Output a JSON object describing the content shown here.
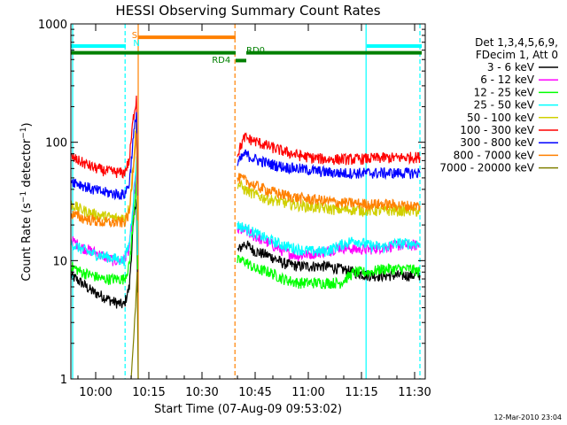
{
  "chart_data": {
    "type": "line",
    "title": "HESSI Observing Summary Count Rates",
    "xlabel": "Start Time (07-Aug-09 09:53:02)",
    "ylabel_main": "Count Rate (s",
    "ylabel_sup1": "−1",
    "ylabel_mid": " detector",
    "ylabel_sup2": "−1",
    "ylabel_end": ")",
    "x_unit": "minutes after 09:53",
    "xlim": [
      0,
      100
    ],
    "ylim": [
      1,
      1000
    ],
    "y_scale": "log",
    "x_ticks": [
      {
        "x": 7,
        "label": "10:00"
      },
      {
        "x": 22,
        "label": "10:15"
      },
      {
        "x": 37,
        "label": "10:30"
      },
      {
        "x": 52,
        "label": "10:45"
      },
      {
        "x": 67,
        "label": "11:00"
      },
      {
        "x": 82,
        "label": "11:15"
      },
      {
        "x": 97,
        "label": "11:30"
      }
    ],
    "y_ticks": [
      {
        "y": 1,
        "label": "1"
      },
      {
        "y": 10,
        "label": "10"
      },
      {
        "y": 100,
        "label": "100"
      },
      {
        "y": 1000,
        "label": "1000"
      }
    ],
    "legend_position": "right",
    "legend_header": [
      "Det 1,3,4,5,6,9,",
      "FDecim 1, Att 0"
    ],
    "flags": {
      "S_label": "S",
      "N_label": "N",
      "RD0_label": "RD0",
      "RD4_label": "RD4",
      "S_color": "#ff8000",
      "N_color": "#00ffff",
      "RD_color": "#008000"
    },
    "flag_bars": [
      {
        "name": "saa-flag",
        "segments": [
          [
            0,
            15.5
          ],
          [
            83.5,
            99
          ]
        ],
        "y": 650,
        "color": "#00ffff"
      },
      {
        "name": "S-flag",
        "segments": [
          [
            19,
            46.5
          ]
        ],
        "y": 770,
        "color": "#ff8000"
      },
      {
        "name": "RD0-flag",
        "segments": [
          [
            0,
            46.5
          ],
          [
            49.5,
            99
          ]
        ],
        "y": 570,
        "color": "#008000"
      },
      {
        "name": "RD4-flag",
        "segments": [
          [
            46.5,
            49.5
          ]
        ],
        "y": 490,
        "color": "#008000"
      }
    ],
    "vlines": [
      {
        "x": 0.5,
        "color": "#00ffff",
        "dashed": false
      },
      {
        "x": 15.3,
        "color": "#00ffff",
        "dashed": true
      },
      {
        "x": 19,
        "color": "#ff8000",
        "dashed": false
      },
      {
        "x": 46.3,
        "color": "#ff8000",
        "dashed": true
      },
      {
        "x": 83.3,
        "color": "#00ffff",
        "dashed": false
      },
      {
        "x": 98.5,
        "color": "#00ffff",
        "dashed": true
      }
    ],
    "series": [
      {
        "name": "3 - 6 keV",
        "color": "#000000",
        "points": [
          [
            0,
            7.5
          ],
          [
            3,
            6.5
          ],
          [
            6,
            5.5
          ],
          [
            9,
            5
          ],
          [
            12,
            4.5
          ],
          [
            15,
            4.2
          ],
          [
            16.5,
            6
          ],
          [
            17.5,
            18
          ],
          [
            18.5,
            35
          ],
          [
            19,
            2
          ],
          [
            47,
            12
          ],
          [
            49,
            14
          ],
          [
            52,
            12
          ],
          [
            56,
            11
          ],
          [
            60,
            9.5
          ],
          [
            64,
            9
          ],
          [
            68,
            9
          ],
          [
            72,
            9
          ],
          [
            76,
            8.5
          ],
          [
            80,
            8
          ],
          [
            84,
            7.5
          ],
          [
            88,
            7.5
          ],
          [
            92,
            7.5
          ],
          [
            96,
            7.5
          ],
          [
            98.5,
            7.5
          ]
        ]
      },
      {
        "name": "6 - 12 keV",
        "color": "#ff00ff",
        "points": [
          [
            0,
            15
          ],
          [
            3,
            13
          ],
          [
            6,
            12
          ],
          [
            9,
            11
          ],
          [
            12,
            10
          ],
          [
            15,
            10
          ],
          [
            16.5,
            13
          ],
          [
            17.5,
            25
          ],
          [
            18.5,
            60
          ],
          [
            19,
            5
          ],
          [
            47,
            18
          ],
          [
            49,
            18
          ],
          [
            52,
            16
          ],
          [
            56,
            14
          ],
          [
            60,
            12
          ],
          [
            64,
            11
          ],
          [
            68,
            11.5
          ],
          [
            72,
            12
          ],
          [
            76,
            13
          ],
          [
            80,
            12.5
          ],
          [
            84,
            12.5
          ],
          [
            88,
            13
          ],
          [
            92,
            13.5
          ],
          [
            96,
            13.5
          ],
          [
            98.5,
            13.5
          ]
        ]
      },
      {
        "name": "12 - 25 keV",
        "color": "#00ff00",
        "points": [
          [
            0,
            9
          ],
          [
            3,
            8
          ],
          [
            6,
            7.5
          ],
          [
            9,
            7
          ],
          [
            12,
            7
          ],
          [
            15,
            7
          ],
          [
            16.5,
            9
          ],
          [
            17.5,
            20
          ],
          [
            18.5,
            50
          ],
          [
            19,
            3
          ],
          [
            47,
            10
          ],
          [
            49,
            10
          ],
          [
            52,
            8.5
          ],
          [
            56,
            8
          ],
          [
            60,
            7
          ],
          [
            64,
            6.5
          ],
          [
            68,
            6.5
          ],
          [
            72,
            6.5
          ],
          [
            76,
            6.5
          ],
          [
            80,
            8
          ],
          [
            84,
            8
          ],
          [
            88,
            8.5
          ],
          [
            92,
            8.5
          ],
          [
            96,
            8.5
          ],
          [
            98.5,
            8
          ]
        ]
      },
      {
        "name": "25 - 50 keV",
        "color": "#00ffff",
        "points": [
          [
            0,
            14
          ],
          [
            3,
            12.5
          ],
          [
            6,
            11.5
          ],
          [
            9,
            11
          ],
          [
            12,
            10.5
          ],
          [
            15,
            10
          ],
          [
            16.5,
            14
          ],
          [
            17.5,
            30
          ],
          [
            18.5,
            70
          ],
          [
            19,
            5
          ],
          [
            47,
            20
          ],
          [
            49,
            19
          ],
          [
            52,
            17
          ],
          [
            56,
            15
          ],
          [
            60,
            13.5
          ],
          [
            64,
            12.5
          ],
          [
            68,
            12
          ],
          [
            72,
            12
          ],
          [
            76,
            13.5
          ],
          [
            80,
            15
          ],
          [
            84,
            13.5
          ],
          [
            88,
            13
          ],
          [
            92,
            14
          ],
          [
            96,
            14
          ],
          [
            98.5,
            14
          ]
        ]
      },
      {
        "name": "50 - 100 keV",
        "color": "#d0d000",
        "points": [
          [
            0,
            30
          ],
          [
            3,
            27
          ],
          [
            6,
            25
          ],
          [
            9,
            24
          ],
          [
            12,
            23
          ],
          [
            15,
            23
          ],
          [
            16.5,
            28
          ],
          [
            17.5,
            60
          ],
          [
            18.5,
            150
          ],
          [
            19,
            10
          ],
          [
            47,
            45
          ],
          [
            49,
            40
          ],
          [
            52,
            36
          ],
          [
            56,
            33
          ],
          [
            60,
            31
          ],
          [
            64,
            29.5
          ],
          [
            68,
            28.5
          ],
          [
            72,
            27.5
          ],
          [
            76,
            27
          ],
          [
            80,
            27
          ],
          [
            84,
            26.5
          ],
          [
            88,
            26.5
          ],
          [
            92,
            26.5
          ],
          [
            96,
            26.5
          ],
          [
            98.5,
            26
          ]
        ]
      },
      {
        "name": "100 - 300 keV",
        "color": "#ff0000",
        "points": [
          [
            0,
            75
          ],
          [
            3,
            68
          ],
          [
            6,
            62
          ],
          [
            9,
            58
          ],
          [
            12,
            56
          ],
          [
            15,
            55
          ],
          [
            16.5,
            70
          ],
          [
            17.5,
            150
          ],
          [
            18.5,
            240
          ],
          [
            19,
            20
          ],
          [
            47,
            80
          ],
          [
            49,
            110
          ],
          [
            52,
            102
          ],
          [
            56,
            92
          ],
          [
            60,
            84
          ],
          [
            64,
            78
          ],
          [
            68,
            74
          ],
          [
            72,
            72
          ],
          [
            76,
            72
          ],
          [
            80,
            72
          ],
          [
            84,
            73
          ],
          [
            88,
            74
          ],
          [
            92,
            74
          ],
          [
            96,
            75
          ],
          [
            98.5,
            75
          ]
        ]
      },
      {
        "name": "300 - 800 keV",
        "color": "#0000ff",
        "points": [
          [
            0,
            48
          ],
          [
            3,
            44
          ],
          [
            6,
            40
          ],
          [
            9,
            38
          ],
          [
            12,
            37
          ],
          [
            15,
            36
          ],
          [
            16.5,
            45
          ],
          [
            17.5,
            100
          ],
          [
            18.5,
            180
          ],
          [
            19,
            15
          ],
          [
            47,
            65
          ],
          [
            49,
            80
          ],
          [
            52,
            72
          ],
          [
            56,
            66
          ],
          [
            60,
            62
          ],
          [
            64,
            60
          ],
          [
            68,
            58
          ],
          [
            72,
            56
          ],
          [
            76,
            55
          ],
          [
            80,
            55
          ],
          [
            84,
            55
          ],
          [
            88,
            55
          ],
          [
            92,
            55
          ],
          [
            96,
            55
          ],
          [
            98.5,
            55
          ]
        ]
      },
      {
        "name": "800 - 7000 keV",
        "color": "#ff8000",
        "points": [
          [
            0,
            25
          ],
          [
            3,
            23
          ],
          [
            6,
            22
          ],
          [
            9,
            21
          ],
          [
            12,
            21
          ],
          [
            15,
            21
          ],
          [
            16.5,
            25
          ],
          [
            17.5,
            55
          ],
          [
            18.5,
            130
          ],
          [
            19,
            8
          ],
          [
            47,
            50
          ],
          [
            49,
            48
          ],
          [
            52,
            43
          ],
          [
            56,
            39
          ],
          [
            60,
            36
          ],
          [
            64,
            34
          ],
          [
            68,
            33
          ],
          [
            72,
            32
          ],
          [
            76,
            31
          ],
          [
            80,
            30.5
          ],
          [
            84,
            30
          ],
          [
            88,
            30
          ],
          [
            92,
            29.5
          ],
          [
            96,
            29
          ],
          [
            98.5,
            29
          ]
        ]
      },
      {
        "name": "7000 - 20000 keV",
        "color": "#808000",
        "points": [
          [
            17,
            1
          ],
          [
            18,
            3
          ],
          [
            18.7,
            8
          ],
          [
            19,
            1
          ]
        ]
      }
    ],
    "footer_date": "12-Mar-2010 23:04"
  }
}
